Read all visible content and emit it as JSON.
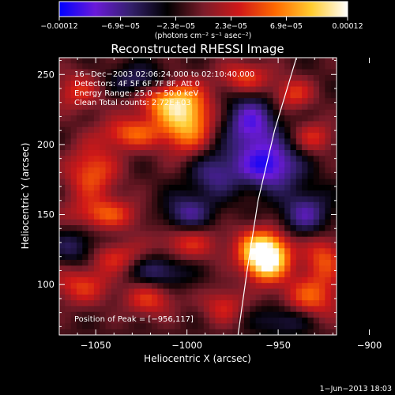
{
  "chart_data": {
    "type": "heatmap",
    "title": "Reconstructed RHESSI Image",
    "xlabel": "Heliocentric X (arcsec)",
    "ylabel": "Heliocentric Y (arcsec)",
    "xlim": [
      -1070,
      -918
    ],
    "ylim": [
      64,
      262
    ],
    "xticks": [
      -1050,
      -1000,
      -950,
      -900
    ],
    "yticks": [
      100,
      150,
      200,
      250
    ],
    "xtick_labels": [
      "−1050",
      "−1000",
      "−950",
      "−900"
    ],
    "ytick_labels": [
      "100",
      "150",
      "200",
      "250"
    ],
    "grid": false,
    "colorbar": {
      "range": [
        -0.00012,
        0.00012
      ],
      "tick_values": [
        -0.00012,
        -6.9e-05,
        -2.3e-05,
        2.3e-05,
        6.9e-05,
        0.00012
      ],
      "tick_labels": [
        "−0.00012",
        "−6.9e−05",
        "−2.3e−05",
        "2.3e−05",
        "6.9e−05",
        "0.00012"
      ],
      "unit_label": "(photons cm⁻² s⁻¹ asec⁻²)",
      "colors": [
        "#0000ff",
        "#6a1ad8",
        "#33206a",
        "#000000",
        "#7a1c2a",
        "#d01818",
        "#ff6a00",
        "#ffcc30",
        "#ffffff"
      ]
    },
    "annotations": [
      "16−Dec−2003 02:06:24.000 to 02:10:40.000",
      "Detectors: 4F 5F 6F 7F 8F, Att 0",
      "Energy Range: 25.0 − 50.0 keV",
      "Clean     Total counts: 2.72E+03"
    ],
    "peak_label": "Position of Peak = [−956,117]",
    "peak": {
      "x": -956,
      "y": 117
    },
    "limb_points": [
      [
        -972,
        64
      ],
      [
        -967,
        110
      ],
      [
        -961,
        160
      ],
      [
        -952,
        210
      ],
      [
        -940,
        262
      ]
    ],
    "features": [
      {
        "x": -957,
        "y": 116,
        "w": 8,
        "h": 10,
        "amp": 1.0
      },
      {
        "x": -958,
        "y": 127,
        "w": 11,
        "h": 10,
        "amp": 0.7
      },
      {
        "x": -1000,
        "y": 216,
        "w": 10,
        "h": 16,
        "amp": 0.8
      },
      {
        "x": -1012,
        "y": 232,
        "w": 12,
        "h": 10,
        "amp": 0.65
      },
      {
        "x": -1030,
        "y": 208,
        "w": 12,
        "h": 8,
        "amp": 0.55
      },
      {
        "x": -1052,
        "y": 180,
        "w": 10,
        "h": 14,
        "amp": 0.55
      },
      {
        "x": -1045,
        "y": 150,
        "w": 14,
        "h": 8,
        "amp": 0.5
      },
      {
        "x": -1040,
        "y": 120,
        "w": 12,
        "h": 8,
        "amp": 0.45
      },
      {
        "x": -1000,
        "y": 130,
        "w": 12,
        "h": 10,
        "amp": 0.45
      },
      {
        "x": -1058,
        "y": 100,
        "w": 12,
        "h": 10,
        "amp": 0.45
      },
      {
        "x": -1020,
        "y": 90,
        "w": 10,
        "h": 9,
        "amp": 0.45
      },
      {
        "x": -980,
        "y": 85,
        "w": 8,
        "h": 9,
        "amp": 0.4
      },
      {
        "x": -932,
        "y": 90,
        "w": 12,
        "h": 12,
        "amp": 0.55
      },
      {
        "x": -925,
        "y": 120,
        "w": 8,
        "h": 12,
        "amp": 0.5
      },
      {
        "x": -968,
        "y": 248,
        "w": 10,
        "h": 8,
        "amp": 0.5
      },
      {
        "x": -942,
        "y": 236,
        "w": 8,
        "h": 8,
        "amp": 0.45
      },
      {
        "x": -930,
        "y": 205,
        "w": 8,
        "h": 8,
        "amp": 0.4
      },
      {
        "x": -1060,
        "y": 238,
        "w": 10,
        "h": 10,
        "amp": 0.4
      },
      {
        "x": -955,
        "y": 185,
        "w": 12,
        "h": 12,
        "amp": -0.75
      },
      {
        "x": -965,
        "y": 215,
        "w": 10,
        "h": 14,
        "amp": -0.65
      },
      {
        "x": -1000,
        "y": 150,
        "w": 10,
        "h": 10,
        "amp": -0.5
      },
      {
        "x": -1025,
        "y": 245,
        "w": 12,
        "h": 8,
        "amp": -0.45
      },
      {
        "x": -1015,
        "y": 110,
        "w": 12,
        "h": 9,
        "amp": -0.45
      },
      {
        "x": -935,
        "y": 150,
        "w": 10,
        "h": 12,
        "amp": -0.5
      },
      {
        "x": -1060,
        "y": 125,
        "w": 10,
        "h": 10,
        "amp": -0.4
      },
      {
        "x": -985,
        "y": 180,
        "w": 10,
        "h": 12,
        "amp": -0.45
      },
      {
        "x": -945,
        "y": 75,
        "w": 12,
        "h": 8,
        "amp": -0.4
      }
    ]
  },
  "footer": {
    "date_label": "1−Jun−2013 18:03"
  }
}
